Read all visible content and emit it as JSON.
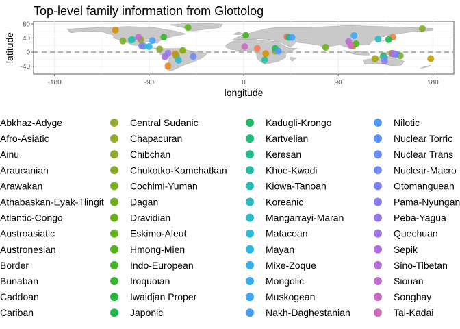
{
  "chart_data": {
    "type": "scatter",
    "title": "Top-level family information from Glottolog",
    "xlabel": "longitude",
    "ylabel": "latitude",
    "xlim": [
      -200,
      200
    ],
    "ylim": [
      -62,
      88
    ],
    "x_ticks": [
      -180,
      -90,
      0,
      90,
      180
    ],
    "x_tick_labels": [
      "-180",
      "-90",
      "0",
      "90",
      "180"
    ],
    "y_ticks": [
      -40,
      0,
      40,
      80
    ],
    "y_tick_labels": [
      "-40",
      "0",
      "40",
      "80"
    ],
    "reference_line": {
      "y": 0,
      "style": "dashed",
      "color": "#b3b3b3"
    },
    "grid": true,
    "background": "world-map",
    "legend_position": "bottom",
    "legend_columns": 4,
    "series": [
      {
        "name": "Abkhaz-Adyge",
        "legend_label": "Abkhaz-Adyge",
        "color": "#F8766D",
        "x": [
          41
        ],
        "y": [
          44
        ]
      },
      {
        "name": "Afro-Asiatic",
        "legend_label": "Afro-Asiatic",
        "color": "#F47A5A",
        "x": [
          13
        ],
        "y": [
          11
        ]
      },
      {
        "name": "Ainu",
        "legend_label": "Ainu",
        "color": "#EF7F45",
        "x": [
          142
        ],
        "y": [
          43
        ]
      },
      {
        "name": "Araucanian",
        "legend_label": "Araucanian",
        "color": "#E88526",
        "x": [
          -72
        ],
        "y": [
          -39
        ]
      },
      {
        "name": "Arawakan",
        "legend_label": "Arawakan",
        "color": "#E08B00",
        "x": [
          -65
        ],
        "y": [
          -5
        ]
      },
      {
        "name": "Athabaskan-Eyak-Tlingit",
        "legend_label": "Athabaskan-Eyak-Tlingit",
        "color": "#D89000",
        "x": [
          -122
        ],
        "y": [
          63
        ]
      },
      {
        "name": "Atlantic-Congo",
        "legend_label": "Atlantic-Congo",
        "color": "#CF9400",
        "x": [
          21
        ],
        "y": [
          -4
        ]
      },
      {
        "name": "Austroasiatic",
        "legend_label": "Austroasiatic",
        "color": "#C59900",
        "x": [
          104
        ],
        "y": [
          18
        ]
      },
      {
        "name": "Austronesian",
        "legend_label": "Austronesian",
        "color": "#BB9D00",
        "x": [
          178
        ],
        "y": [
          -18
        ]
      },
      {
        "name": "Border",
        "legend_label": "Border",
        "color": "#AFA100",
        "x": [
          141
        ],
        "y": [
          -3
        ]
      },
      {
        "name": "Bunaban",
        "legend_label": "Bunaban",
        "color": "#A3A500",
        "x": [
          125
        ],
        "y": [
          -18
        ]
      },
      {
        "name": "Caddoan",
        "legend_label": "Caddoan",
        "color": "#96A900",
        "x": [
          -98
        ],
        "y": [
          36
        ]
      },
      {
        "name": "Cariban",
        "legend_label": "Cariban",
        "color": "#87AC00",
        "x": [
          -58
        ],
        "y": [
          5
        ]
      },
      {
        "name": "Central Sudanic",
        "legend_label": "Central Sudanic",
        "color": "#9AA834",
        "x": [
          30
        ],
        "y": [
          3
        ]
      },
      {
        "name": "Chapacuran",
        "legend_label": "Chapacuran",
        "color": "#93AA2F",
        "x": [
          -64
        ],
        "y": [
          -11
        ]
      },
      {
        "name": "Chibchan",
        "legend_label": "Chibchan",
        "color": "#8BAB2B",
        "x": [
          -80
        ],
        "y": [
          9
        ]
      },
      {
        "name": "Chukotko-Kamchatkan",
        "legend_label": "Chukotko-Kamchatkan",
        "color": "#83AD27",
        "x": [
          170
        ],
        "y": [
          67
        ]
      },
      {
        "name": "Cochimi-Yuman",
        "legend_label": "Cochimi-Yuman",
        "color": "#7BAF24",
        "x": [
          -115
        ],
        "y": [
          32
        ]
      },
      {
        "name": "Dagan",
        "legend_label": "Dagan",
        "color": "#72B021",
        "x": [
          149
        ],
        "y": [
          -10
        ]
      },
      {
        "name": "Dravidian",
        "legend_label": "Dravidian",
        "color": "#69B21F",
        "x": [
          78
        ],
        "y": [
          14
        ]
      },
      {
        "name": "Eskimo-Aleut",
        "legend_label": "Eskimo-Aleut",
        "color": "#5EB31F",
        "x": [
          -53
        ],
        "y": [
          70
        ]
      },
      {
        "name": "Hmong-Mien",
        "legend_label": "Hmong-Mien",
        "color": "#53B41F",
        "x": [
          107
        ],
        "y": [
          24
        ]
      },
      {
        "name": "Indo-European",
        "legend_label": "Indo-European",
        "color": "#45B525",
        "x": [
          2
        ],
        "y": [
          48
        ]
      },
      {
        "name": "Iroquoian",
        "legend_label": "Iroquoian",
        "color": "#36B62E",
        "x": [
          -76
        ],
        "y": [
          43
        ]
      },
      {
        "name": "Iwaidjan Proper",
        "legend_label": "Iwaidjan Proper",
        "color": "#28B73C",
        "x": [
          133
        ],
        "y": [
          -11
        ]
      },
      {
        "name": "Japonic",
        "legend_label": "Japonic",
        "color": "#1DB84E",
        "x": [
          138
        ],
        "y": [
          36
        ]
      },
      {
        "name": "Kadugli-Krongo",
        "legend_label": "Kadugli-Krongo",
        "color": "#1EB964",
        "x": [
          30
        ],
        "y": [
          11
        ]
      },
      {
        "name": "Kartvelian",
        "legend_label": "Kartvelian",
        "color": "#20BA7A",
        "x": [
          43
        ],
        "y": [
          42
        ]
      },
      {
        "name": "Keresan",
        "legend_label": "Keresan",
        "color": "#22BB8F",
        "x": [
          -107
        ],
        "y": [
          35
        ]
      },
      {
        "name": "Khoe-Kwadi",
        "legend_label": "Khoe-Kwadi",
        "color": "#25BBA2",
        "x": [
          20
        ],
        "y": [
          -22
        ]
      },
      {
        "name": "Kiowa-Tanoan",
        "legend_label": "Kiowa-Tanoan",
        "color": "#27BCB3",
        "x": [
          -106
        ],
        "y": [
          36
        ]
      },
      {
        "name": "Koreanic",
        "legend_label": "Koreanic",
        "color": "#29BBC2",
        "x": [
          128
        ],
        "y": [
          37
        ]
      },
      {
        "name": "Mangarrayi-Maran",
        "legend_label": "Mangarrayi-Maran",
        "color": "#2BB9CF",
        "x": [
          134
        ],
        "y": [
          -15
        ]
      },
      {
        "name": "Matacoan",
        "legend_label": "Matacoan",
        "color": "#2DB7DA",
        "x": [
          -62
        ],
        "y": [
          -23
        ]
      },
      {
        "name": "Mayan",
        "legend_label": "Mayan",
        "color": "#30B4E4",
        "x": [
          -90
        ],
        "y": [
          16
        ]
      },
      {
        "name": "Mixe-Zoque",
        "legend_label": "Mixe-Zoque",
        "color": "#33B0EC",
        "x": [
          -95
        ],
        "y": [
          17
        ]
      },
      {
        "name": "Mongolic",
        "legend_label": "Mongolic",
        "color": "#37ABF2",
        "x": [
          105
        ],
        "y": [
          47
        ]
      },
      {
        "name": "Muskogean",
        "legend_label": "Muskogean",
        "color": "#3DA6F6",
        "x": [
          -87
        ],
        "y": [
          33
        ]
      },
      {
        "name": "Nakh-Daghestanian",
        "legend_label": "Nakh-Daghestanian",
        "color": "#45A0F8",
        "x": [
          46
        ],
        "y": [
          42
        ]
      },
      {
        "name": "Nilotic",
        "legend_label": "Nilotic",
        "color": "#4F99F9",
        "x": [
          33
        ],
        "y": [
          3
        ]
      },
      {
        "name": "Nuclear Torricelli",
        "legend_label": "Nuclear Torric",
        "color": "#5A93F9",
        "x": [
          143
        ],
        "y": [
          -4
        ]
      },
      {
        "name": "Nuclear Trans New Guinea",
        "legend_label": "Nuclear Trans",
        "color": "#668DF8",
        "x": [
          145
        ],
        "y": [
          -6
        ]
      },
      {
        "name": "Nuclear-Macro-Je",
        "legend_label": "Nuclear-Macro",
        "color": "#7287F6",
        "x": [
          -48
        ],
        "y": [
          -12
        ]
      },
      {
        "name": "Otomanguean",
        "legend_label": "Otomanguean",
        "color": "#7E81F3",
        "x": [
          -97
        ],
        "y": [
          18
        ]
      },
      {
        "name": "Pama-Nyungan",
        "legend_label": "Pama-Nyungan",
        "color": "#8A7CEF",
        "x": [
          134
        ],
        "y": [
          -25
        ]
      },
      {
        "name": "Peba-Yagua",
        "legend_label": "Peba-Yagua",
        "color": "#9678EA",
        "x": [
          -72
        ],
        "y": [
          -3
        ]
      },
      {
        "name": "Quechuan",
        "legend_label": "Quechuan",
        "color": "#A174E4",
        "x": [
          -75
        ],
        "y": [
          -13
        ]
      },
      {
        "name": "Sepik",
        "legend_label": "Sepik",
        "color": "#AC71DE",
        "x": [
          142
        ],
        "y": [
          -4
        ]
      },
      {
        "name": "Sino-Tibetan",
        "legend_label": "Sino-Tibetan",
        "color": "#B66FD7",
        "x": [
          100
        ],
        "y": [
          30
        ]
      },
      {
        "name": "Siouan",
        "legend_label": "Siouan",
        "color": "#C06DCF",
        "x": [
          -100
        ],
        "y": [
          43
        ]
      },
      {
        "name": "Songhay",
        "legend_label": "Songhay",
        "color": "#C96BC6",
        "x": [
          1
        ],
        "y": [
          16
        ]
      },
      {
        "name": "Tai-Kadai",
        "legend_label": "Tai-Kadai",
        "color": "#D16ABC",
        "x": [
          102
        ],
        "y": [
          19
        ]
      }
    ]
  }
}
